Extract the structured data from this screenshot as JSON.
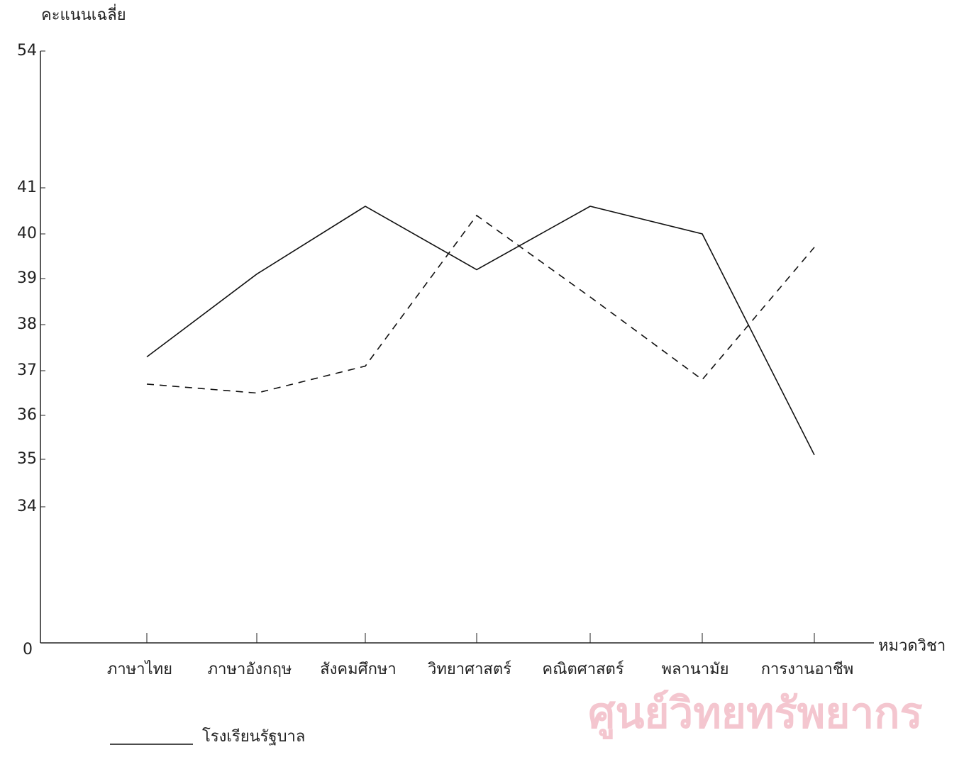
{
  "chart_data": {
    "type": "line",
    "y_label": "คะแนนเฉลี่ย",
    "x_label": "หมวดวิชา",
    "watermark": "ศูนย์วิทยทรัพยากร",
    "categories": [
      "ภาษาไทย",
      "ภาษาอังกฤษ",
      "สังคมศึกษา",
      "วิทยาศาสตร์",
      "คณิตศาสตร์",
      "พลานามัย",
      "การงานอาชีพ"
    ],
    "series": [
      {
        "name": "โรงเรียนรัฐบาล",
        "color": "#111111",
        "dashed": false,
        "values": [
          37.3,
          39.1,
          40.6,
          39.2,
          40.6,
          40.0,
          35.1
        ]
      },
      {
        "color": "#111111",
        "dashed": true,
        "values": [
          36.7,
          36.5,
          37.1,
          40.4,
          38.6,
          36.8,
          39.7
        ]
      }
    ],
    "ylim": [
      0,
      54
    ],
    "yticks": [
      0,
      34,
      35,
      36,
      37,
      38,
      39,
      40,
      41,
      54
    ],
    "legend": "bottom-left"
  }
}
